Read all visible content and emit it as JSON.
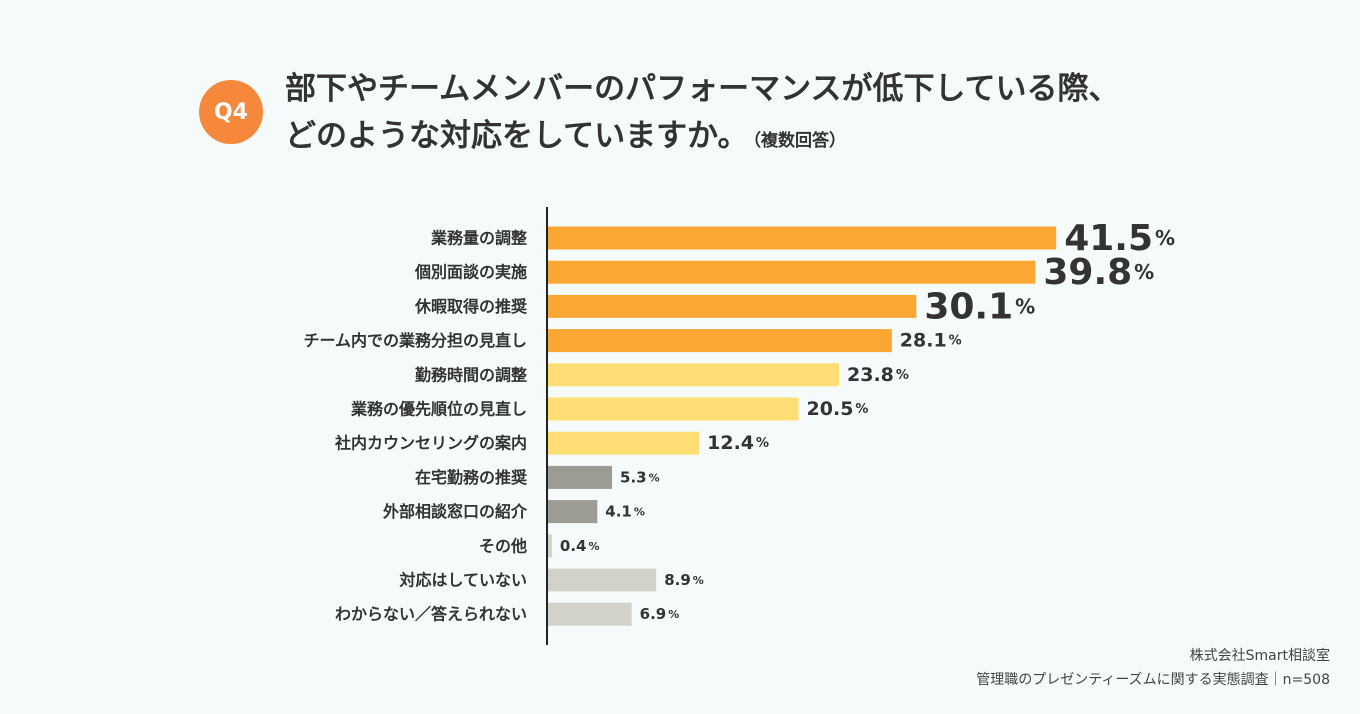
{
  "badge": {
    "label": "Q4"
  },
  "title": {
    "line1": "部下やチームメンバーのパフォーマンスが低下している際、",
    "line2": "どのような対応をしていますか。",
    "note": "（複数回答）"
  },
  "chart_data": {
    "type": "bar",
    "orientation": "horizontal",
    "categories": [
      "業務量の調整",
      "個別面談の実施",
      "休暇取得の推奨",
      "チーム内での業務分担の見直し",
      "勤務時間の調整",
      "業務の優先順位の見直し",
      "社内カウンセリングの案内",
      "在宅勤務の推奨",
      "外部相談窓口の紹介",
      "その他",
      "対応はしていない",
      "わからない／答えられない"
    ],
    "values": [
      41.5,
      39.8,
      30.1,
      28.1,
      23.8,
      20.5,
      12.4,
      5.3,
      4.1,
      0.4,
      8.9,
      6.9
    ],
    "value_labels": [
      "41.5",
      "39.8",
      "30.1",
      "28.1",
      "23.8",
      "20.5",
      "12.4",
      "5.3",
      "4.1",
      "0.4",
      "8.9",
      "6.9"
    ],
    "unit": "%",
    "colors": [
      "#fba733",
      "#fba733",
      "#fba733",
      "#fba733",
      "#ffdf75",
      "#ffdf75",
      "#ffdf75",
      "#9c9b94",
      "#9c9b94",
      "#d3d2c9",
      "#d3d2c9",
      "#d3d2c9"
    ],
    "label_emphasis": [
      "large",
      "large",
      "large",
      "normal",
      "normal",
      "normal",
      "normal",
      "small",
      "small",
      "small",
      "small",
      "small"
    ],
    "xlim": [
      0,
      100
    ],
    "grid": false,
    "xlabel": "",
    "ylabel": ""
  },
  "footer": {
    "company": "株式会社Smart相談室",
    "survey": "管理職のプレゼンティーズムに関する実態調査｜n=508"
  }
}
